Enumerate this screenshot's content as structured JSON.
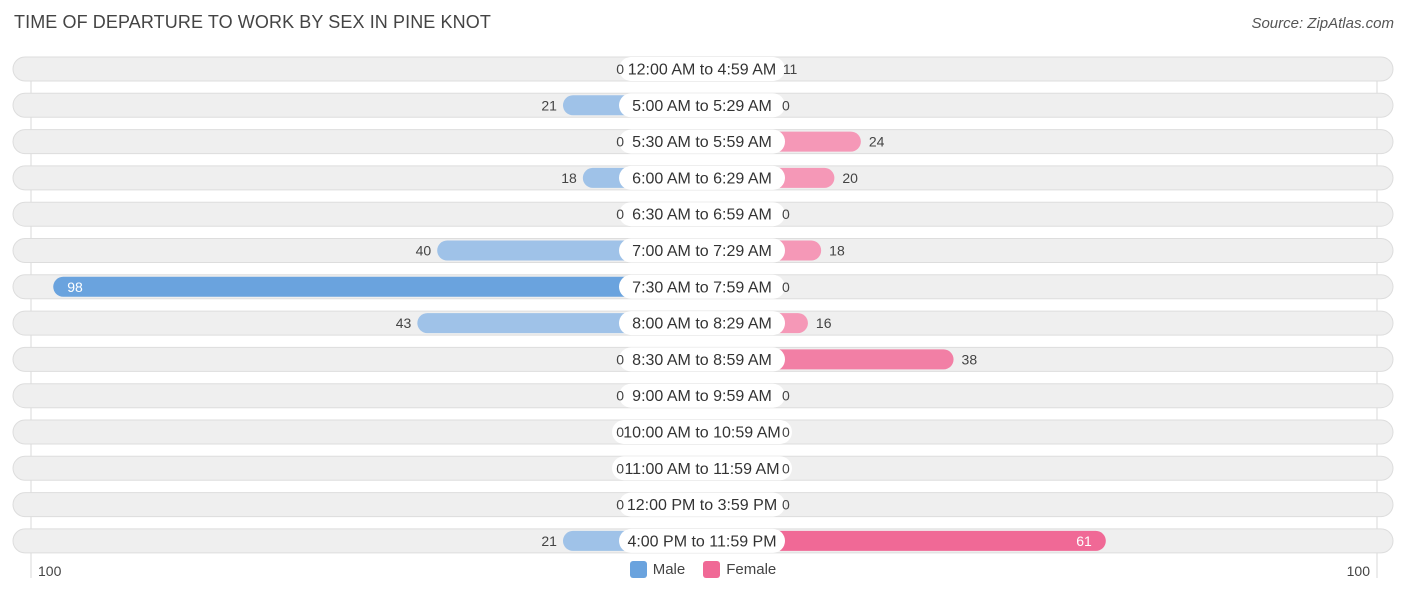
{
  "title": "TIME OF DEPARTURE TO WORK BY SEX IN PINE KNOT",
  "source": "Source: ZipAtlas.com",
  "colors": {
    "male": "#6aa3de",
    "male_light": "#a7c7ea",
    "female": "#f06996",
    "female_light": "#f6a9c3",
    "row_bg": "#efefef",
    "row_border": "#dddddd"
  },
  "legend": [
    {
      "label": "Male",
      "color": "#6aa3de"
    },
    {
      "label": "Female",
      "color": "#f06996"
    }
  ],
  "axis": {
    "left_label": "100",
    "right_label": "100"
  },
  "chart_data": {
    "type": "bar",
    "orientation": "horizontal-diverging",
    "title": "TIME OF DEPARTURE TO WORK BY SEX IN PINE KNOT",
    "xlim": [
      -100,
      100
    ],
    "categories": [
      "12:00 AM to 4:59 AM",
      "5:00 AM to 5:29 AM",
      "5:30 AM to 5:59 AM",
      "6:00 AM to 6:29 AM",
      "6:30 AM to 6:59 AM",
      "7:00 AM to 7:29 AM",
      "7:30 AM to 7:59 AM",
      "8:00 AM to 8:29 AM",
      "8:30 AM to 8:59 AM",
      "9:00 AM to 9:59 AM",
      "10:00 AM to 10:59 AM",
      "11:00 AM to 11:59 AM",
      "12:00 PM to 3:59 PM",
      "4:00 PM to 11:59 PM"
    ],
    "series": [
      {
        "name": "Male",
        "values": [
          0,
          21,
          0,
          18,
          0,
          40,
          98,
          43,
          0,
          0,
          0,
          0,
          0,
          21
        ]
      },
      {
        "name": "Female",
        "values": [
          11,
          0,
          24,
          20,
          0,
          18,
          0,
          16,
          38,
          0,
          0,
          0,
          0,
          61
        ]
      }
    ],
    "legend_position": "bottom-center",
    "grid": false
  }
}
